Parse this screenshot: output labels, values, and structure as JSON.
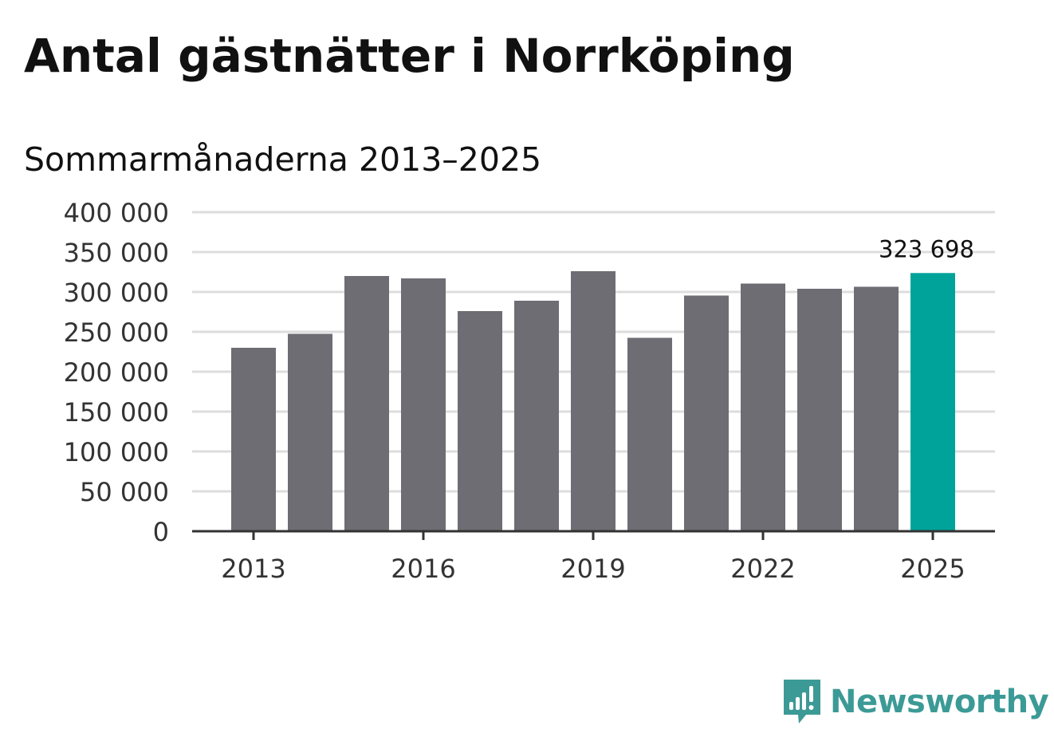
{
  "chart_data": {
    "type": "bar",
    "title": "Antal gästnätter i Norrköping",
    "subtitle": "Sommarmånaderna 2013–2025",
    "xlabel": "",
    "ylabel": "",
    "categories": [
      "2013",
      "2014",
      "2015",
      "2016",
      "2017",
      "2018",
      "2019",
      "2020",
      "2021",
      "2022",
      "2023",
      "2024",
      "2025"
    ],
    "values": [
      230000,
      247500,
      320000,
      317000,
      276000,
      289000,
      326000,
      242500,
      295500,
      310500,
      304000,
      306500,
      323698
    ],
    "ylim": [
      0,
      400000
    ],
    "yticks": [
      {
        "value": 0,
        "label": "0"
      },
      {
        "value": 50000,
        "label": "50 000"
      },
      {
        "value": 100000,
        "label": "100 000"
      },
      {
        "value": 150000,
        "label": "150 000"
      },
      {
        "value": 200000,
        "label": "200 000"
      },
      {
        "value": 250000,
        "label": "250 000"
      },
      {
        "value": 300000,
        "label": "300 000"
      },
      {
        "value": 350000,
        "label": "350 000"
      },
      {
        "value": 400000,
        "label": "400 000"
      }
    ],
    "xtick_labels": [
      "2013",
      "2016",
      "2019",
      "2022",
      "2025"
    ],
    "highlight": {
      "category": "2025",
      "label": "323 698"
    },
    "grid": true,
    "legend": "none",
    "colors": {
      "bar": "#6e6d73",
      "highlight": "#00a39a",
      "grid": "#dddddd",
      "axis": "#333333",
      "text": "#333333"
    }
  },
  "brand": {
    "name": "Newsworthy",
    "icon": "newsworthy-logo-icon",
    "color": "#3c9a96"
  }
}
